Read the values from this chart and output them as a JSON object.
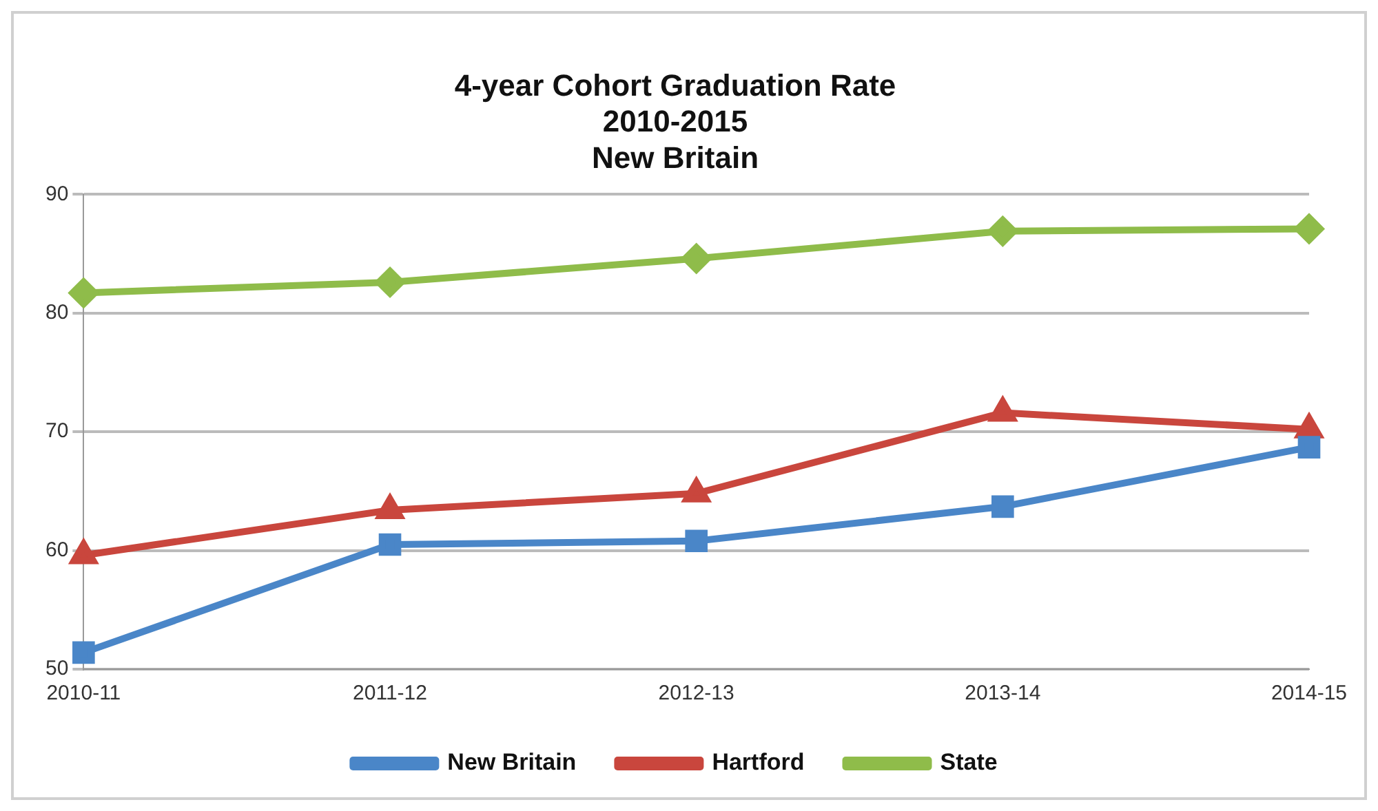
{
  "chart_data": {
    "type": "line",
    "title": [
      "4-year Cohort Graduation Rate",
      "2010-2015",
      "New Britain"
    ],
    "categories": [
      "2010-11",
      "2011-12",
      "2012-13",
      "2013-14",
      "2014-15"
    ],
    "series": [
      {
        "name": "New Britain",
        "color": "#4a86c8",
        "marker": "square",
        "values": [
          51.4,
          60.5,
          60.8,
          63.7,
          68.7
        ]
      },
      {
        "name": "Hartford",
        "color": "#c9463d",
        "marker": "triangle",
        "values": [
          59.6,
          63.4,
          64.8,
          71.6,
          70.2
        ]
      },
      {
        "name": "State",
        "color": "#8fbc4a",
        "marker": "diamond",
        "values": [
          81.7,
          82.6,
          84.6,
          86.9,
          87.1
        ]
      }
    ],
    "ylim": [
      50,
      90
    ],
    "yticks": [
      50,
      60,
      70,
      80,
      90
    ],
    "grid": "y",
    "legend": "bottom",
    "line_style": "solid"
  }
}
